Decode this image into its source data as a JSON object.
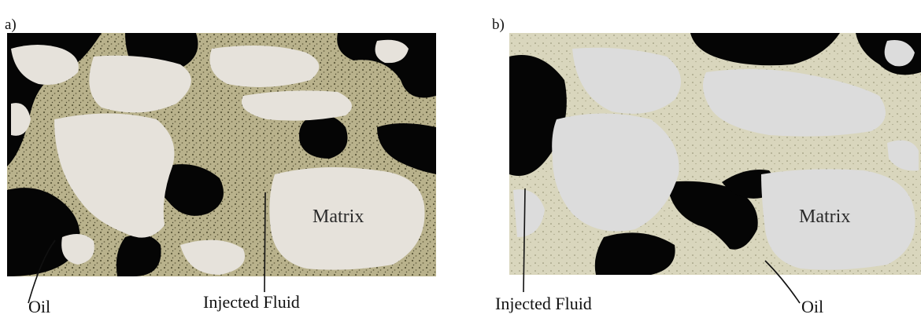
{
  "panels": [
    {
      "label": "a)",
      "matrix_label": "Matrix",
      "callouts": {
        "oil": "Oil",
        "injected_fluid": "Injected Fluid"
      }
    },
    {
      "label": "b)",
      "matrix_label": "Matrix",
      "callouts": {
        "injected_fluid": "Injected Fluid",
        "oil": "Oil"
      }
    }
  ],
  "colors": {
    "oil": "#050505",
    "matrix_a": "#e6e2db",
    "matrix_b": "#dcdcdc",
    "injected_fluid_a": "#b9b28c",
    "injected_fluid_b": "#d9d6bd"
  }
}
